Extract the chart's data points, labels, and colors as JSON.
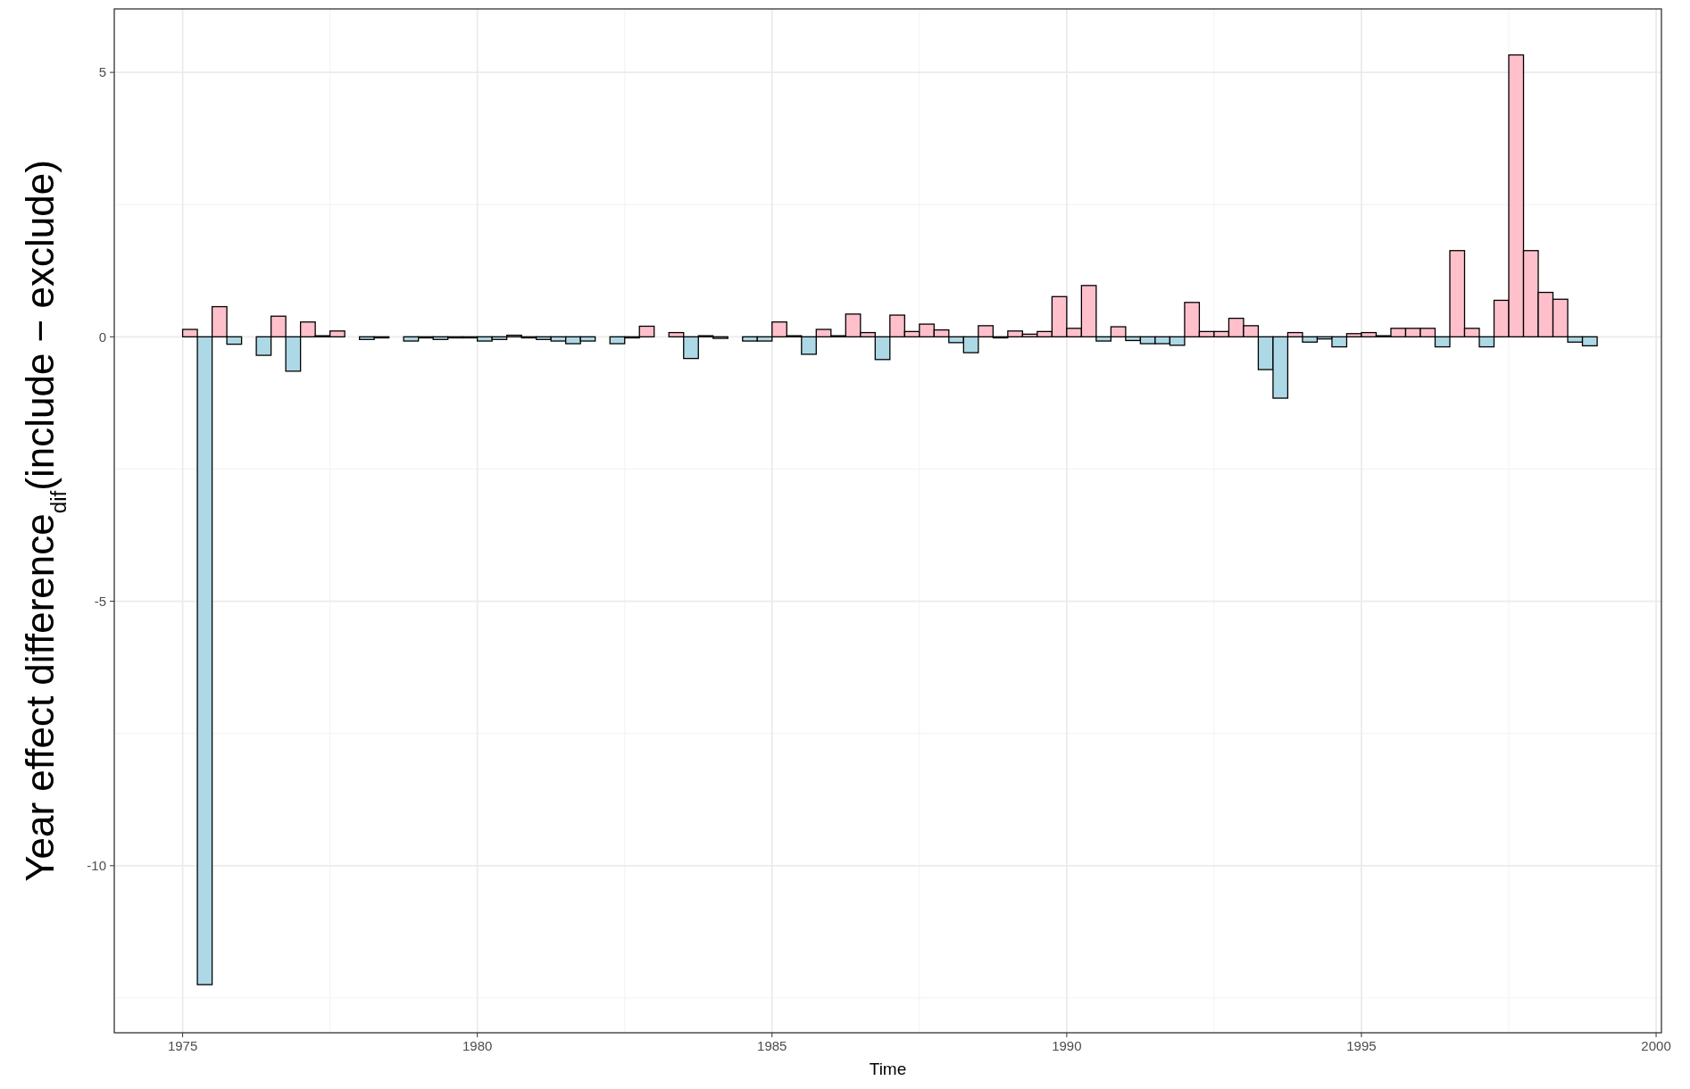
{
  "chart_data": {
    "type": "bar",
    "xlabel": "Time",
    "ylabel": "Year effect difference$_{dif}$(include − exclude)",
    "x": [
      1975.125,
      1975.375,
      1975.625,
      1975.875,
      1976.375,
      1976.625,
      1976.875,
      1977.125,
      1977.375,
      1977.625,
      1978.125,
      1978.375,
      1978.875,
      1979.125,
      1979.375,
      1979.625,
      1979.875,
      1980.125,
      1980.375,
      1980.625,
      1980.875,
      1981.125,
      1981.375,
      1981.625,
      1981.875,
      1982.375,
      1982.625,
      1982.875,
      1983.375,
      1983.625,
      1983.875,
      1984.125,
      1984.625,
      1984.875,
      1985.125,
      1985.375,
      1985.625,
      1985.875,
      1986.125,
      1986.375,
      1986.625,
      1986.875,
      1987.125,
      1987.375,
      1987.625,
      1987.875,
      1988.125,
      1988.375,
      1988.625,
      1988.875,
      1989.125,
      1989.375,
      1989.625,
      1989.875,
      1990.125,
      1990.375,
      1990.625,
      1990.875,
      1991.125,
      1991.375,
      1991.625,
      1991.875,
      1992.125,
      1992.375,
      1992.625,
      1992.875,
      1993.125,
      1993.375,
      1993.625,
      1993.875,
      1994.125,
      1994.375,
      1994.625,
      1994.875,
      1995.125,
      1995.375,
      1995.625,
      1995.875,
      1996.125,
      1996.375,
      1996.625,
      1996.875,
      1997.125,
      1997.375,
      1997.625,
      1997.875,
      1998.125,
      1998.375,
      1998.625,
      1998.875
    ],
    "values": [
      0.14,
      -12.25,
      0.57,
      -0.14,
      -0.35,
      0.39,
      -0.65,
      0.28,
      0.02,
      0.11,
      -0.05,
      -0.02,
      -0.08,
      -0.02,
      -0.05,
      -0.02,
      -0.02,
      -0.08,
      -0.05,
      0.03,
      -0.02,
      -0.05,
      -0.08,
      -0.13,
      -0.08,
      -0.13,
      -0.02,
      0.2,
      0.08,
      -0.41,
      0.02,
      -0.03,
      -0.08,
      -0.08,
      0.28,
      0.02,
      -0.33,
      0.14,
      0.02,
      0.43,
      0.08,
      -0.43,
      0.41,
      0.1,
      0.24,
      0.13,
      -0.11,
      -0.3,
      0.21,
      -0.02,
      0.11,
      0.05,
      0.1,
      0.76,
      0.16,
      0.97,
      -0.08,
      0.19,
      -0.07,
      -0.13,
      -0.13,
      -0.16,
      0.65,
      0.1,
      0.1,
      0.35,
      0.21,
      -0.62,
      -1.16,
      0.08,
      -0.1,
      -0.04,
      -0.19,
      0.06,
      0.08,
      0.02,
      0.16,
      0.16,
      0.16,
      -0.19,
      1.63,
      0.16,
      -0.19,
      0.69,
      5.33,
      1.63,
      0.84,
      0.71,
      -0.1,
      -0.17
    ],
    "colors": [
      "#ffc0cb",
      "#add8e6",
      "#ffc0cb",
      "#add8e6",
      "#add8e6",
      "#ffc0cb",
      "#add8e6",
      "#ffc0cb",
      "#ffc0cb",
      "#ffc0cb",
      "#add8e6",
      "#add8e6",
      "#add8e6",
      "#add8e6",
      "#add8e6",
      "#add8e6",
      "#add8e6",
      "#add8e6",
      "#add8e6",
      "#ffc0cb",
      "#add8e6",
      "#add8e6",
      "#add8e6",
      "#add8e6",
      "#add8e6",
      "#add8e6",
      "#add8e6",
      "#ffc0cb",
      "#ffc0cb",
      "#add8e6",
      "#ffc0cb",
      "#add8e6",
      "#add8e6",
      "#add8e6",
      "#ffc0cb",
      "#ffc0cb",
      "#add8e6",
      "#ffc0cb",
      "#ffc0cb",
      "#ffc0cb",
      "#ffc0cb",
      "#add8e6",
      "#ffc0cb",
      "#ffc0cb",
      "#ffc0cb",
      "#ffc0cb",
      "#add8e6",
      "#add8e6",
      "#ffc0cb",
      "#add8e6",
      "#ffc0cb",
      "#ffc0cb",
      "#ffc0cb",
      "#ffc0cb",
      "#ffc0cb",
      "#ffc0cb",
      "#add8e6",
      "#ffc0cb",
      "#add8e6",
      "#add8e6",
      "#add8e6",
      "#add8e6",
      "#ffc0cb",
      "#ffc0cb",
      "#ffc0cb",
      "#ffc0cb",
      "#ffc0cb",
      "#add8e6",
      "#add8e6",
      "#ffc0cb",
      "#add8e6",
      "#add8e6",
      "#add8e6",
      "#ffc0cb",
      "#ffc0cb",
      "#ffc0cb",
      "#ffc0cb",
      "#ffc0cb",
      "#ffc0cb",
      "#add8e6",
      "#ffc0cb",
      "#ffc0cb",
      "#add8e6",
      "#ffc0cb",
      "#ffc0cb",
      "#ffc0cb",
      "#ffc0cb",
      "#ffc0cb",
      "#add8e6",
      "#add8e6"
    ],
    "xlim": [
      1973.84,
      2000.09
    ],
    "xticks": [
      1975,
      1980,
      1985,
      1990,
      1995,
      2000
    ],
    "ylim": [
      -13.16,
      6.2
    ],
    "yticks": [
      -10,
      -5,
      0,
      5
    ],
    "grid": true
  }
}
